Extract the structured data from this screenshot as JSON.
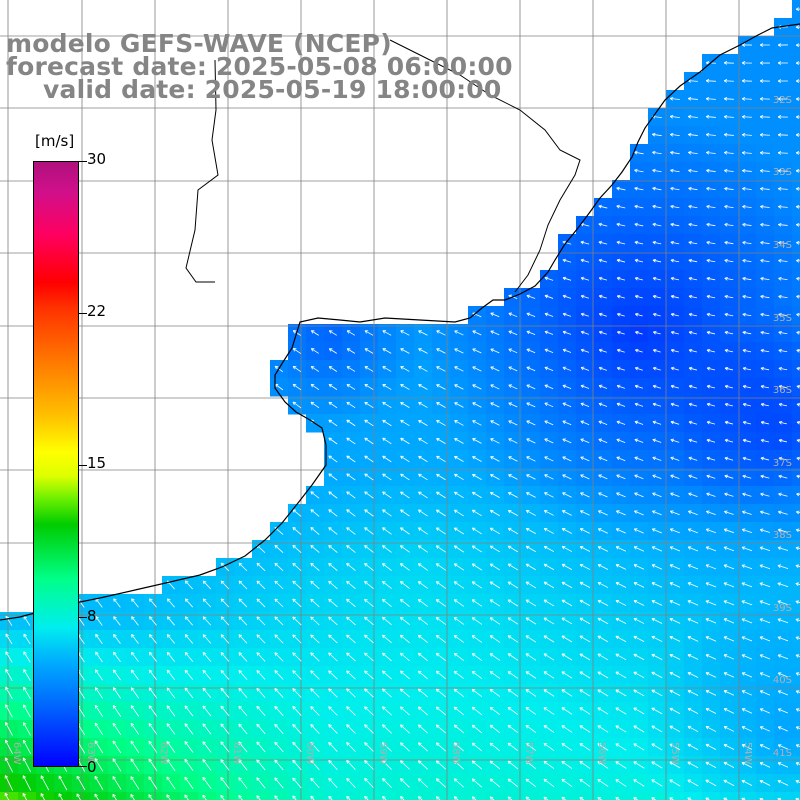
{
  "title": {
    "model": "modelo GEFS-WAVE (NCEP)",
    "forecast": "forecast date: 2025-05-08 06:00:00",
    "valid": "valid date: 2025-05-19 18:00:00"
  },
  "colorbar": {
    "unit": "[m/s]",
    "ticks": [
      "30",
      "22",
      "15",
      "8",
      "0"
    ],
    "range": [
      0,
      30
    ],
    "colors": [
      "#0000ff",
      "#00aaff",
      "#00eeee",
      "#00cc00",
      "#ffff00",
      "#ff8000",
      "#ff0000",
      "#b0107e"
    ]
  },
  "map": {
    "lat_labels": [
      "32S",
      "33S",
      "34S",
      "35S",
      "36S",
      "37S",
      "38S",
      "39S",
      "40S",
      "41S"
    ],
    "lon_labels": [
      "64W",
      "63W",
      "62W",
      "61W",
      "60W",
      "59W",
      "58W",
      "57W",
      "56W",
      "55W",
      "54W",
      "53W"
    ],
    "land_color": "#ffffff",
    "coast_color": "#000000",
    "grid_color": "#808080",
    "arrow_color": "#ffffff"
  }
}
